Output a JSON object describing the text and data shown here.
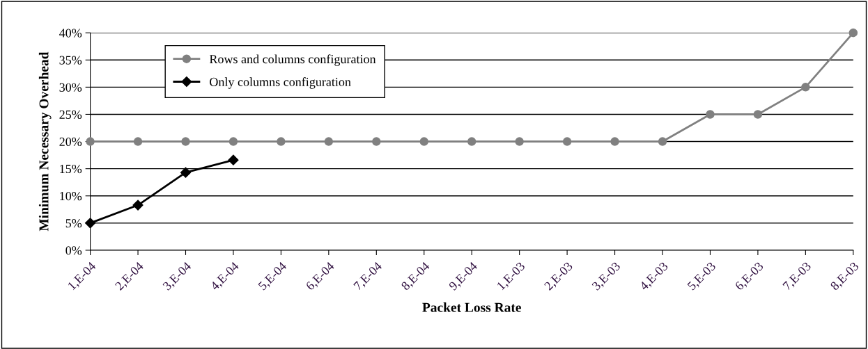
{
  "chart_data": {
    "type": "line",
    "xlabel": "Packet Loss Rate",
    "ylabel": "Minimum Necessary Overhead",
    "categories": [
      "1,E-04",
      "2,E-04",
      "3,E-04",
      "4,E-04",
      "5,E-04",
      "6,E-04",
      "7,E-04",
      "8,E-04",
      "9,E-04",
      "1,E-03",
      "2,E-03",
      "3,E-03",
      "4,E-03",
      "5,E-03",
      "6,E-03",
      "7,E-03",
      "8,E-03"
    ],
    "series": [
      {
        "name": "Rows and columns configuration",
        "color": "#808080",
        "marker": "circle",
        "values": [
          20,
          20,
          20,
          20,
          20,
          20,
          20,
          20,
          20,
          20,
          20,
          20,
          20,
          25,
          25,
          30,
          40
        ]
      },
      {
        "name": "Only columns configuration",
        "color": "#000000",
        "marker": "diamond",
        "values": [
          5,
          8.3,
          14.3,
          16.6,
          null,
          null,
          null,
          null,
          null,
          null,
          null,
          null,
          null,
          null,
          null,
          null,
          null
        ]
      }
    ],
    "ylim": [
      0,
      40
    ],
    "yticks": [
      {
        "value": 0,
        "label": "0%"
      },
      {
        "value": 5,
        "label": "5%"
      },
      {
        "value": 10,
        "label": "10%"
      },
      {
        "value": 15,
        "label": "15%"
      },
      {
        "value": 20,
        "label": "20%"
      },
      {
        "value": 25,
        "label": "25%"
      },
      {
        "value": 30,
        "label": "30%"
      },
      {
        "value": 35,
        "label": "35%"
      },
      {
        "value": 40,
        "label": "40%"
      }
    ],
    "grid": "y",
    "legend": "top left",
    "line_style": "solid"
  }
}
